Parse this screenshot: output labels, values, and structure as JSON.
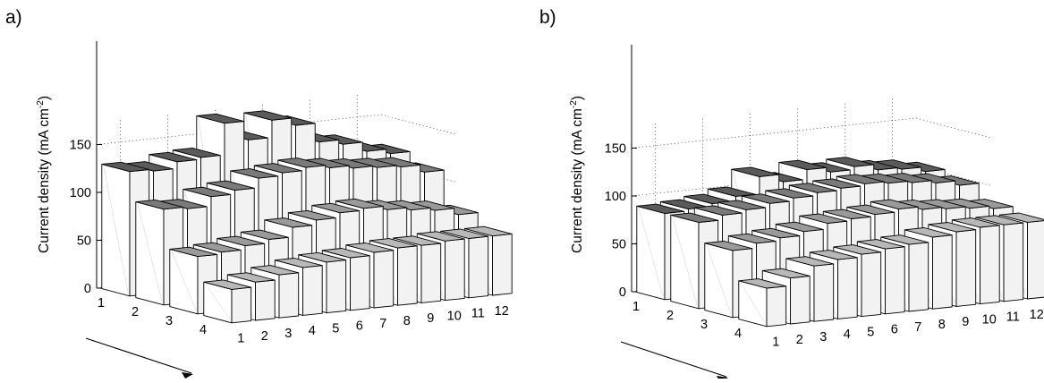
{
  "chart_data": [
    {
      "type": "bar",
      "panel_label": "a)",
      "title": "",
      "xlabel": "",
      "ylabel": "Current density (mA cm",
      "ylabel_superscript": "-2",
      "ylabel_close": ")",
      "ylim": [
        0,
        175
      ],
      "yticks": [
        "0",
        "50",
        "100",
        "150"
      ],
      "rows": [
        "1",
        "2",
        "3",
        "4"
      ],
      "columns": [
        "1",
        "2",
        "3",
        "4",
        "5",
        "6",
        "7",
        "8",
        "9",
        "10",
        "11",
        "12"
      ],
      "series": [
        {
          "values": [
            130,
            128,
            135,
            137,
            170,
            150,
            168,
            160,
            140,
            135,
            125,
            120
          ]
        },
        {
          "values": [
            100,
            98,
            108,
            112,
            122,
            125,
            128,
            125,
            122,
            120,
            118,
            110
          ]
        },
        {
          "values": [
            60,
            62,
            66,
            70,
            80,
            85,
            90,
            92,
            88,
            85,
            82,
            75
          ]
        },
        {
          "values": [
            35,
            40,
            45,
            50,
            53,
            55,
            58,
            60,
            60,
            62,
            62,
            62
          ]
        }
      ],
      "grid": true
    },
    {
      "type": "bar",
      "panel_label": "b)",
      "title": "",
      "xlabel": "",
      "ylabel": "Current density (mA cm",
      "ylabel_superscript": "-2",
      "ylabel_close": ")",
      "ylim": [
        0,
        175
      ],
      "yticks": [
        "0",
        "50",
        "100",
        "150"
      ],
      "rows": [
        "1",
        "2",
        "3",
        "4"
      ],
      "columns": [
        "1",
        "2",
        "3",
        "4",
        "5",
        "6",
        "7",
        "8",
        "9",
        "10",
        "11",
        "12"
      ],
      "series": [
        {
          "values": [
            90,
            92,
            95,
            100,
            118,
            110,
            120,
            115,
            118,
            112,
            110,
            105
          ]
        },
        {
          "values": [
            90,
            95,
            98,
            102,
            105,
            108,
            110,
            112,
            110,
            108,
            105,
            100
          ]
        },
        {
          "values": [
            70,
            75,
            78,
            82,
            88,
            90,
            92,
            95,
            92,
            90,
            88,
            85
          ]
        },
        {
          "values": [
            40,
            48,
            58,
            62,
            65,
            68,
            70,
            75,
            78,
            80,
            80,
            80
          ]
        }
      ],
      "grid": true
    }
  ]
}
